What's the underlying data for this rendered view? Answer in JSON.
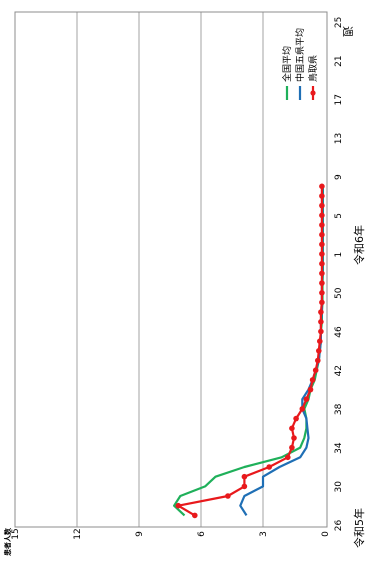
{
  "chart_data": {
    "type": "line",
    "orientation": "rotated-90-clockwise",
    "title": "",
    "ylabel": "患者人数",
    "ylim": [
      0,
      15
    ],
    "y_ticks": [
      "0",
      "3",
      "6",
      "9",
      "12",
      "15"
    ],
    "x_tick_labels": [
      "26",
      "30",
      "34",
      "38",
      "42",
      "46",
      "50",
      "1",
      "5",
      "9",
      "13",
      "17",
      "21",
      "25"
    ],
    "x_unit": "週",
    "period_labels": [
      "令和5年",
      "令和6年"
    ],
    "grid": true,
    "legend_position": "top-right",
    "x": [
      "27",
      "28",
      "29",
      "30",
      "31",
      "32",
      "33",
      "34",
      "35",
      "36",
      "37",
      "38",
      "39",
      "40",
      "41",
      "42",
      "43",
      "44",
      "45",
      "46",
      "47",
      "48",
      "49",
      "50",
      "51",
      "52",
      "1",
      "2",
      "3",
      "4",
      "5",
      "6",
      "7",
      "8",
      "9"
    ],
    "series": [
      {
        "name": "鳥取県",
        "color": "#e8191c",
        "marker": "circle",
        "values": [
          6.3,
          7.1,
          4.7,
          3.9,
          3.9,
          2.7,
          1.8,
          1.6,
          1.5,
          1.6,
          1.4,
          1.1,
          0.9,
          0.7,
          0.6,
          0.45,
          0.35,
          0.3,
          0.25,
          0.2,
          0.2,
          0.2,
          0.15,
          0.15,
          0.15,
          0.15,
          0.15,
          0.15,
          0.15,
          0.15,
          0.15,
          0.15,
          0.15,
          0.15,
          0.15
        ]
      },
      {
        "name": "中国五県平均",
        "color": "#1f6fb5",
        "marker": "none",
        "values": [
          3.8,
          4.1,
          3.9,
          3.0,
          3.0,
          2.2,
          1.2,
          0.9,
          0.8,
          0.85,
          0.9,
          1.1,
          1.1,
          0.8,
          0.6,
          0.45,
          0.3,
          0.25,
          0.2,
          0.2,
          0.2,
          0.15,
          0.15,
          0.15,
          0.15,
          0.12,
          0.12,
          0.12,
          0.12,
          0.12,
          0.12,
          0.12,
          0.12,
          0.12,
          0.12
        ]
      },
      {
        "name": "全国平均",
        "color": "#1fb05a",
        "marker": "none",
        "values": [
          6.8,
          7.3,
          7.0,
          5.8,
          5.3,
          3.9,
          2.1,
          1.2,
          1.0,
          0.9,
          0.9,
          1.0,
          0.8,
          0.7,
          0.5,
          0.4,
          0.3,
          0.25,
          0.2,
          0.2,
          0.15,
          0.15,
          0.12,
          0.12,
          0.12,
          0.1,
          0.1,
          0.1,
          0.1,
          0.1,
          0.1,
          0.1,
          0.1,
          0.1,
          0.1
        ]
      }
    ]
  }
}
